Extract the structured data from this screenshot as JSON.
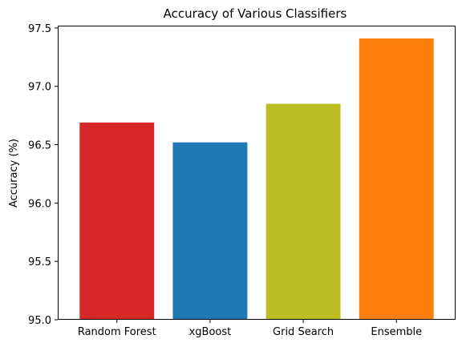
{
  "chart_data": {
    "type": "bar",
    "title": "Accuracy of Various Classifiers",
    "xlabel": "",
    "ylabel": "Accuracy (%)",
    "categories": [
      "Random Forest",
      "xgBoost",
      "Grid Search",
      "Ensemble"
    ],
    "values": [
      96.69,
      96.52,
      96.85,
      97.41
    ],
    "colors": [
      "#d62728",
      "#1f77b4",
      "#bcbd22",
      "#ff7f0e"
    ],
    "ylim": [
      95.0,
      97.52
    ],
    "yticks": [
      95.0,
      95.5,
      96.0,
      96.5,
      97.0,
      97.5
    ],
    "ytick_labels": [
      "95.0",
      "95.5",
      "96.0",
      "96.5",
      "97.0",
      "97.5"
    ],
    "grid": false,
    "legend": "none"
  }
}
